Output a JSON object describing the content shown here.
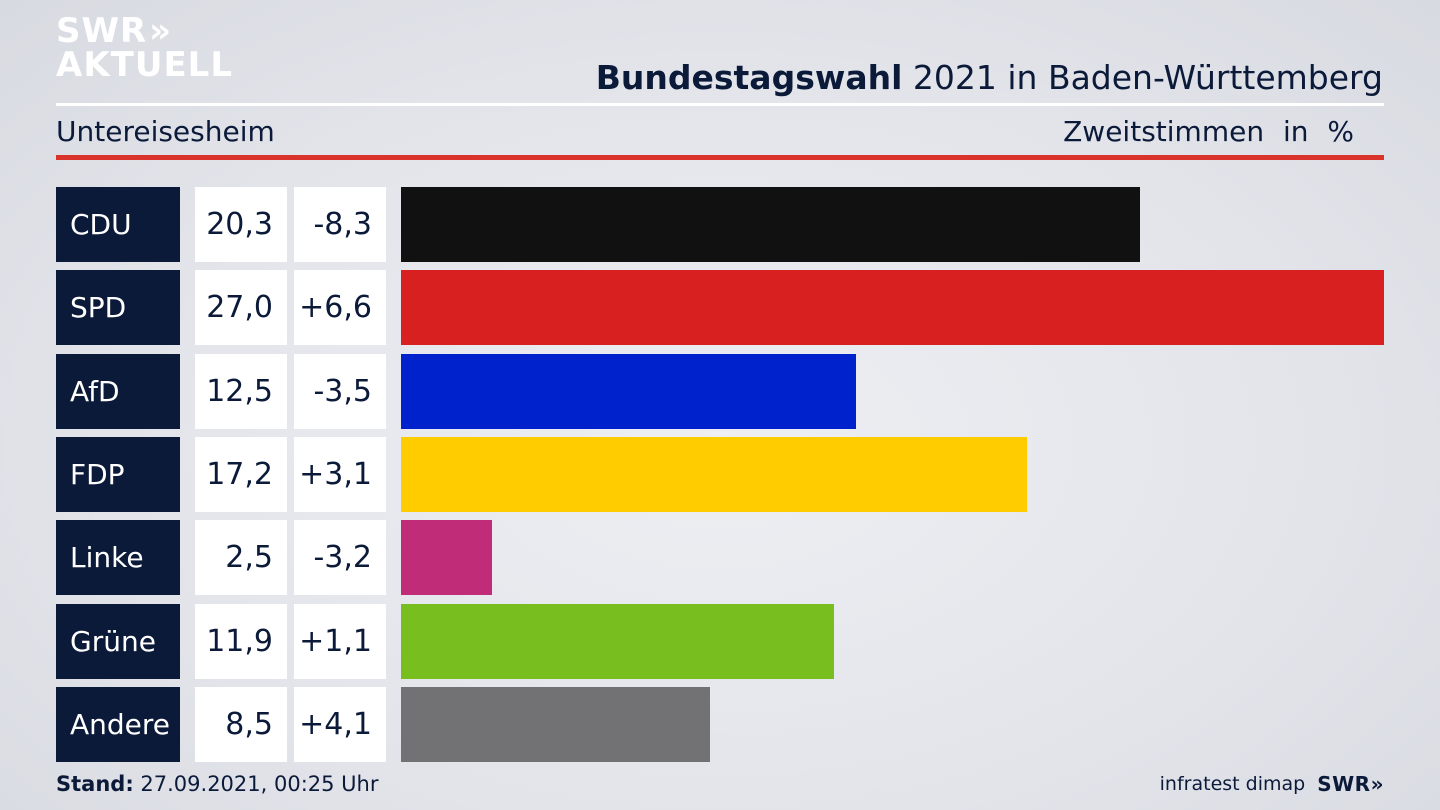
{
  "logo": {
    "line1": "SWR",
    "chevrons": "»",
    "line2": "AKTUELL"
  },
  "header": {
    "title_bold": "Bundestagswahl",
    "title_rest": " 2021 in Baden-Württemberg",
    "region": "Untereisesheim",
    "measure": "Zweitstimmen",
    "unit": "in %"
  },
  "chart_data": {
    "type": "bar",
    "categories": [
      "CDU",
      "SPD",
      "AfD",
      "FDP",
      "Linke",
      "Grüne",
      "Andere"
    ],
    "values": [
      20.3,
      27.0,
      12.5,
      17.2,
      2.5,
      11.9,
      8.5
    ],
    "value_labels": [
      "20,3",
      "27,0",
      "12,5",
      "17,2",
      "2,5",
      "11,9",
      "8,5"
    ],
    "changes": [
      -8.3,
      6.6,
      -3.5,
      3.1,
      -3.2,
      1.1,
      4.1
    ],
    "change_labels": [
      "-8,3",
      "+6,6",
      "-3,5",
      "+3,1",
      "-3,2",
      "+1,1",
      "+4,1"
    ],
    "colors": [
      "#111111",
      "#d92020",
      "#0022cc",
      "#ffcc00",
      "#c02c78",
      "#78be1e",
      "#727274"
    ],
    "xlim": [
      0,
      27.0
    ],
    "orientation": "horizontal"
  },
  "footer": {
    "stand_label": "Stand:",
    "stand_value": " 27.09.2021, 00:25 Uhr",
    "source": "infratest dimap",
    "brand": "SWR»"
  }
}
